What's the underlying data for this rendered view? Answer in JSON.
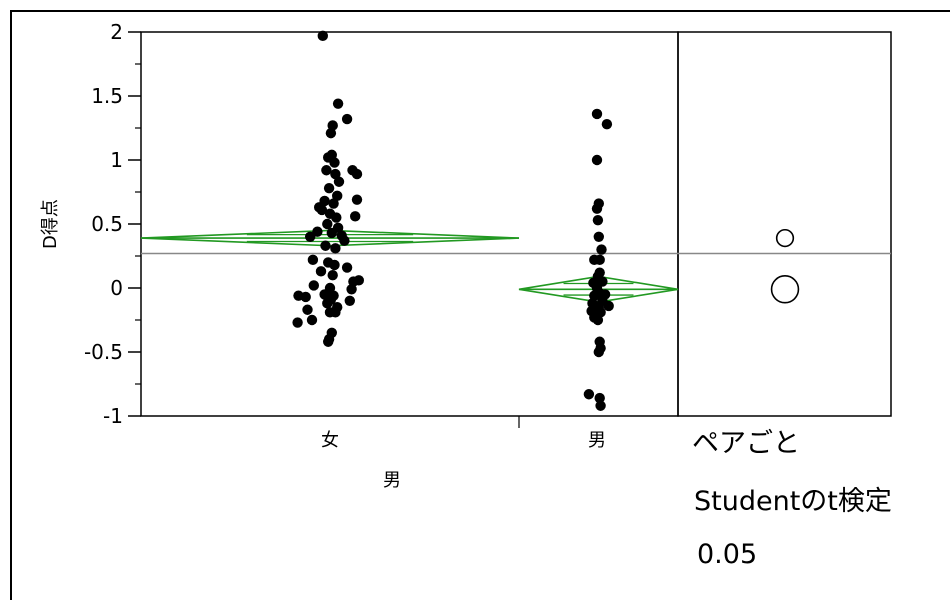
{
  "chart_data": {
    "type": "scatter",
    "title": "",
    "xlabel": "男",
    "ylabel": "D得点",
    "ylim": [
      -1,
      2
    ],
    "yticks": [
      "2",
      "1.5",
      "1",
      "0.5",
      "0",
      "-0.5",
      "-1"
    ],
    "ytick_values": [
      2,
      1.5,
      1,
      0.5,
      0,
      -0.5,
      -1
    ],
    "categories": [
      "女",
      "男"
    ],
    "grand_mean": 0.27,
    "groups": [
      {
        "name": "女",
        "mean": 0.39,
        "ci": [
          0.33,
          0.45
        ],
        "points": [
          {
            "j": -0.8,
            "y": 1.97
          },
          {
            "j": 0.9,
            "y": 1.44
          },
          {
            "j": 1.9,
            "y": 1.32
          },
          {
            "j": 0.3,
            "y": 1.27
          },
          {
            "j": 0.1,
            "y": 1.21
          },
          {
            "j": -0.2,
            "y": 1.02
          },
          {
            "j": 0.2,
            "y": 1.04
          },
          {
            "j": 0.5,
            "y": 0.98
          },
          {
            "j": -0.4,
            "y": 0.92
          },
          {
            "j": 0.6,
            "y": 0.89
          },
          {
            "j": 2.5,
            "y": 0.92
          },
          {
            "j": 3.0,
            "y": 0.89
          },
          {
            "j": 1.0,
            "y": 0.83
          },
          {
            "j": -0.1,
            "y": 0.78
          },
          {
            "j": 0.8,
            "y": 0.72
          },
          {
            "j": -0.6,
            "y": 0.68
          },
          {
            "j": 0.4,
            "y": 0.66
          },
          {
            "j": 3.0,
            "y": 0.69
          },
          {
            "j": -1.2,
            "y": 0.63
          },
          {
            "j": -0.9,
            "y": 0.61
          },
          {
            "j": 0.0,
            "y": 0.58
          },
          {
            "j": 0.7,
            "y": 0.55
          },
          {
            "j": 2.8,
            "y": 0.56
          },
          {
            "j": -0.3,
            "y": 0.5
          },
          {
            "j": 0.9,
            "y": 0.47
          },
          {
            "j": -1.4,
            "y": 0.44
          },
          {
            "j": 0.2,
            "y": 0.43
          },
          {
            "j": 1.3,
            "y": 0.41
          },
          {
            "j": -2.2,
            "y": 0.4
          },
          {
            "j": 1.6,
            "y": 0.37
          },
          {
            "j": -0.5,
            "y": 0.33
          },
          {
            "j": 0.6,
            "y": 0.31
          },
          {
            "j": -1.9,
            "y": 0.22
          },
          {
            "j": -0.2,
            "y": 0.2
          },
          {
            "j": 0.5,
            "y": 0.18
          },
          {
            "j": 1.9,
            "y": 0.16
          },
          {
            "j": -1.0,
            "y": 0.13
          },
          {
            "j": 0.3,
            "y": 0.1
          },
          {
            "j": 3.2,
            "y": 0.06
          },
          {
            "j": 2.6,
            "y": 0.05
          },
          {
            "j": -1.8,
            "y": 0.02
          },
          {
            "j": 0.0,
            "y": 0.0
          },
          {
            "j": 2.4,
            "y": -0.01
          },
          {
            "j": -3.5,
            "y": -0.06
          },
          {
            "j": -0.6,
            "y": -0.05
          },
          {
            "j": 0.4,
            "y": -0.06
          },
          {
            "j": -2.7,
            "y": -0.07
          },
          {
            "j": 0.1,
            "y": -0.09
          },
          {
            "j": 2.2,
            "y": -0.1
          },
          {
            "j": -0.3,
            "y": -0.12
          },
          {
            "j": 0.8,
            "y": -0.15
          },
          {
            "j": -2.5,
            "y": -0.17
          },
          {
            "j": 0.0,
            "y": -0.19
          },
          {
            "j": 0.6,
            "y": -0.19
          },
          {
            "j": -3.6,
            "y": -0.27
          },
          {
            "j": -2.0,
            "y": -0.25
          },
          {
            "j": 0.2,
            "y": -0.35
          },
          {
            "j": -0.1,
            "y": -0.4
          },
          {
            "j": -0.2,
            "y": -0.42
          }
        ]
      },
      {
        "name": "男",
        "mean": -0.01,
        "ci": [
          -0.11,
          0.09
        ],
        "points": [
          {
            "j": 0.0,
            "y": 1.36
          },
          {
            "j": 1.1,
            "y": 1.28
          },
          {
            "j": 0.0,
            "y": 1.0
          },
          {
            "j": 0.2,
            "y": 0.66
          },
          {
            "j": 0.0,
            "y": 0.62
          },
          {
            "j": 0.1,
            "y": 0.53
          },
          {
            "j": 0.2,
            "y": 0.4
          },
          {
            "j": 0.5,
            "y": 0.3
          },
          {
            "j": 0.3,
            "y": 0.22
          },
          {
            "j": -0.3,
            "y": 0.22
          },
          {
            "j": 0.3,
            "y": 0.12
          },
          {
            "j": 0.1,
            "y": 0.09
          },
          {
            "j": -0.4,
            "y": 0.04
          },
          {
            "j": 0.6,
            "y": 0.05
          },
          {
            "j": 0.0,
            "y": 0.0
          },
          {
            "j": 0.3,
            "y": -0.04
          },
          {
            "j": -0.3,
            "y": -0.06
          },
          {
            "j": 0.9,
            "y": -0.05
          },
          {
            "j": 0.6,
            "y": -0.1
          },
          {
            "j": -0.5,
            "y": -0.12
          },
          {
            "j": 1.3,
            "y": -0.14
          },
          {
            "j": 0.2,
            "y": -0.15
          },
          {
            "j": -0.6,
            "y": -0.18
          },
          {
            "j": 0.4,
            "y": -0.19
          },
          {
            "j": -0.3,
            "y": -0.23
          },
          {
            "j": 0.1,
            "y": -0.25
          },
          {
            "j": 0.3,
            "y": -0.42
          },
          {
            "j": 0.4,
            "y": -0.47
          },
          {
            "j": 0.2,
            "y": -0.5
          },
          {
            "j": -0.9,
            "y": -0.83
          },
          {
            "j": 0.3,
            "y": -0.86
          },
          {
            "j": 0.4,
            "y": -0.92
          }
        ]
      }
    ],
    "comparison_circles": [
      {
        "group": "女",
        "center": 0.39,
        "radius_data": 0.065
      },
      {
        "group": "男",
        "center": -0.01,
        "radius_data": 0.105
      }
    ],
    "legend_lines": [
      "ペアごと",
      "Studentのt検定",
      "0.05"
    ],
    "colors": {
      "diamond": "#229922",
      "grand_mean_line": "#888888",
      "points": "#000000"
    }
  }
}
